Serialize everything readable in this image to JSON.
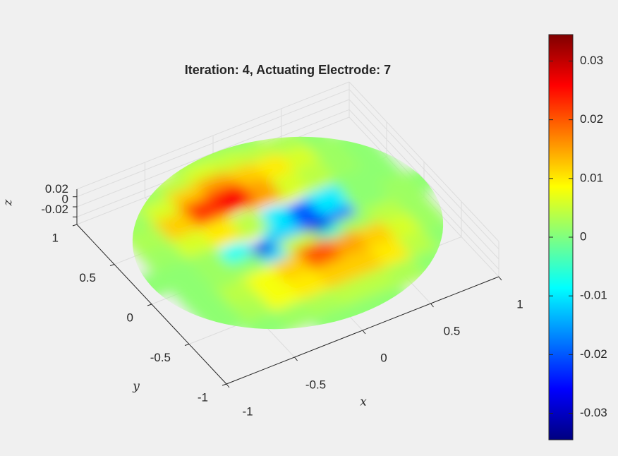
{
  "chart_data": {
    "type": "surface",
    "title": "Iteration: 4, Actuating Electrode: 7",
    "xlabel": "x",
    "ylabel": "y",
    "zlabel": "z",
    "colormap": "jet",
    "x": [
      -1,
      -0.8,
      -0.6,
      -0.4,
      -0.2,
      0,
      0.2,
      0.4,
      0.6,
      0.8,
      1
    ],
    "y": [
      -1,
      -0.8,
      -0.6,
      -0.4,
      -0.2,
      0,
      0.2,
      0.4,
      0.6,
      0.8,
      1
    ],
    "z": [
      [
        null,
        null,
        null,
        null,
        0.001,
        0.001,
        0.001,
        null,
        null,
        null,
        null
      ],
      [
        null,
        null,
        0.001,
        0.002,
        0.003,
        0.004,
        0.004,
        0.003,
        0.001,
        null,
        null
      ],
      [
        null,
        0.001,
        0.003,
        0.008,
        0.01,
        0.012,
        0.012,
        0.01,
        0.004,
        0.001,
        null
      ],
      [
        null,
        0.001,
        0.004,
        0.008,
        0.012,
        0.02,
        0.015,
        0.012,
        0.006,
        0.002,
        null
      ],
      [
        null,
        0.001,
        0.002,
        0.001,
        -0.01,
        0.005,
        -0.005,
        0.002,
        0.004,
        0.002,
        null
      ],
      [
        0.001,
        0.001,
        0.002,
        -0.008,
        -0.028,
        -0.012,
        -0.03,
        -0.02,
        0.001,
        0.002,
        0.001
      ],
      [
        null,
        0.002,
        0.006,
        0.01,
        0.004,
        -0.01,
        -0.02,
        -0.01,
        0.001,
        0.001,
        null
      ],
      [
        null,
        0.003,
        0.012,
        0.022,
        0.026,
        0.015,
        0.006,
        0.004,
        0.002,
        0.001,
        null
      ],
      [
        null,
        0.002,
        0.006,
        0.012,
        0.015,
        0.012,
        0.01,
        0.006,
        0.002,
        0.001,
        null
      ],
      [
        null,
        null,
        0.002,
        0.004,
        0.006,
        0.005,
        0.004,
        0.003,
        0.001,
        null,
        null
      ],
      [
        null,
        null,
        null,
        null,
        0.002,
        0.002,
        0.001,
        null,
        null,
        null,
        null
      ]
    ],
    "xlim": [
      -1,
      1
    ],
    "ylim": [
      -1,
      1
    ],
    "zlim": [
      -0.035,
      0.035
    ],
    "xticks": [
      -1,
      -0.5,
      0,
      0.5,
      1
    ],
    "yticks": [
      -1,
      -0.5,
      0,
      0.5,
      1
    ],
    "zticks": [
      -0.02,
      0,
      0.02
    ],
    "clim": [
      -0.0345,
      0.0345
    ],
    "cticks": [
      -0.03,
      -0.02,
      -0.01,
      0,
      0.01,
      0.02,
      0.03
    ],
    "grid": true
  }
}
